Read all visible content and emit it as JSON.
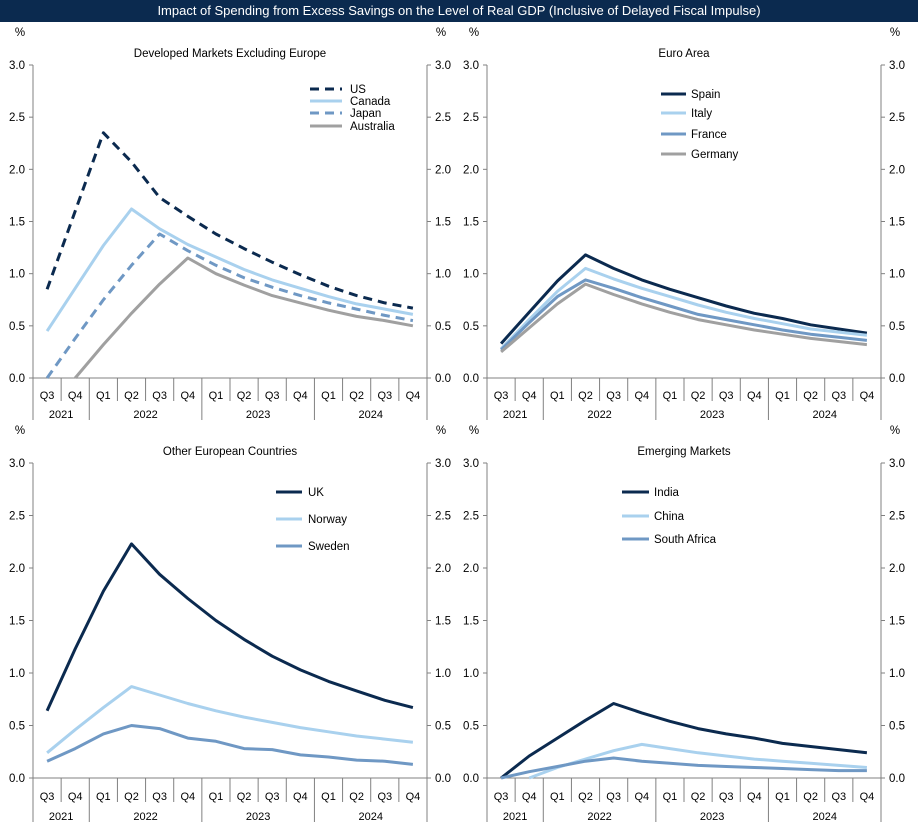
{
  "title": "Impact of Spending from Excess Savings on the Level of Real GDP (Inclusive of Delayed Fiscal Impulse)",
  "colors": {
    "banner": "#0b2a4f",
    "dark_navy": "#0b2a4f",
    "light_blue": "#a9d1ee",
    "mid_blue": "#6f98c4",
    "gray": "#a0a0a0",
    "axis": "#808080"
  },
  "shared_x": {
    "quarters": [
      "Q3",
      "Q4",
      "Q1",
      "Q2",
      "Q3",
      "Q4",
      "Q1",
      "Q2",
      "Q3",
      "Q4",
      "Q1",
      "Q2",
      "Q3",
      "Q4"
    ],
    "years": [
      {
        "label": "2021",
        "start": 0,
        "end": 1
      },
      {
        "label": "2022",
        "start": 2,
        "end": 5
      },
      {
        "label": "2023",
        "start": 6,
        "end": 9
      },
      {
        "label": "2024",
        "start": 10,
        "end": 13
      }
    ]
  },
  "chart_data": [
    {
      "type": "line",
      "title": "Developed Markets Excluding Europe",
      "ylabel_left": "%",
      "ylabel_right": "%",
      "ylim": [
        0,
        3
      ],
      "yticks": [
        "0.0",
        "0.5",
        "1.0",
        "1.5",
        "2.0",
        "2.5",
        "3.0"
      ],
      "series": [
        {
          "name": "US",
          "color_key": "dark_navy",
          "dash": true,
          "values": [
            0.85,
            1.6,
            2.35,
            2.07,
            1.73,
            1.55,
            1.38,
            1.24,
            1.11,
            0.99,
            0.88,
            0.79,
            0.72,
            0.67
          ]
        },
        {
          "name": "Canada",
          "color_key": "light_blue",
          "dash": false,
          "values": [
            0.45,
            0.86,
            1.27,
            1.62,
            1.43,
            1.28,
            1.16,
            1.04,
            0.94,
            0.86,
            0.78,
            0.71,
            0.66,
            0.61
          ]
        },
        {
          "name": "Japan",
          "color_key": "mid_blue",
          "dash": true,
          "values": [
            0.0,
            0.38,
            0.75,
            1.08,
            1.38,
            1.22,
            1.08,
            0.96,
            0.87,
            0.79,
            0.72,
            0.66,
            0.6,
            0.55
          ]
        },
        {
          "name": "Australia",
          "color_key": "gray",
          "dash": false,
          "values": [
            null,
            0.0,
            0.32,
            0.62,
            0.9,
            1.15,
            1.0,
            0.89,
            0.79,
            0.72,
            0.65,
            0.59,
            0.55,
            0.5
          ]
        }
      ],
      "legend": [
        "US",
        "Canada",
        "Japan",
        "Australia"
      ]
    },
    {
      "type": "line",
      "title": "Euro Area",
      "ylabel_left": "%",
      "ylabel_right": "%",
      "ylim": [
        0,
        3
      ],
      "yticks": [
        "0.0",
        "0.5",
        "1.0",
        "1.5",
        "2.0",
        "2.5",
        "3.0"
      ],
      "series": [
        {
          "name": "Spain",
          "color_key": "dark_navy",
          "dash": false,
          "values": [
            0.33,
            0.63,
            0.93,
            1.18,
            1.05,
            0.94,
            0.85,
            0.77,
            0.69,
            0.62,
            0.57,
            0.51,
            0.47,
            0.43
          ]
        },
        {
          "name": "Italy",
          "color_key": "light_blue",
          "dash": false,
          "values": [
            0.28,
            0.56,
            0.83,
            1.05,
            0.95,
            0.86,
            0.78,
            0.7,
            0.63,
            0.57,
            0.52,
            0.47,
            0.44,
            0.41
          ]
        },
        {
          "name": "France",
          "color_key": "mid_blue",
          "dash": false,
          "values": [
            0.27,
            0.53,
            0.78,
            0.94,
            0.86,
            0.77,
            0.69,
            0.61,
            0.56,
            0.51,
            0.46,
            0.42,
            0.39,
            0.36
          ]
        },
        {
          "name": "Germany",
          "color_key": "gray",
          "dash": false,
          "values": [
            0.25,
            0.48,
            0.71,
            0.9,
            0.8,
            0.71,
            0.63,
            0.56,
            0.51,
            0.46,
            0.42,
            0.38,
            0.35,
            0.32
          ]
        }
      ],
      "legend": [
        "Spain",
        "Italy",
        "France",
        "Germany"
      ]
    },
    {
      "type": "line",
      "title": "Other European Countries",
      "ylabel_left": "%",
      "ylabel_right": "%",
      "ylim": [
        0,
        3
      ],
      "yticks": [
        "0.0",
        "0.5",
        "1.0",
        "1.5",
        "2.0",
        "2.5",
        "3.0"
      ],
      "series": [
        {
          "name": "UK",
          "color_key": "dark_navy",
          "dash": false,
          "values": [
            0.64,
            1.23,
            1.78,
            2.23,
            1.94,
            1.71,
            1.5,
            1.32,
            1.16,
            1.03,
            0.92,
            0.83,
            0.74,
            0.67
          ]
        },
        {
          "name": "Norway",
          "color_key": "light_blue",
          "dash": false,
          "values": [
            0.24,
            0.46,
            0.67,
            0.87,
            0.79,
            0.71,
            0.64,
            0.58,
            0.53,
            0.48,
            0.44,
            0.4,
            0.37,
            0.34
          ]
        },
        {
          "name": "Sweden",
          "color_key": "mid_blue",
          "dash": false,
          "values": [
            0.16,
            0.28,
            0.42,
            0.5,
            0.47,
            0.38,
            0.35,
            0.28,
            0.27,
            0.22,
            0.2,
            0.17,
            0.16,
            0.13
          ]
        }
      ],
      "legend": [
        "UK",
        "Norway",
        "Sweden"
      ]
    },
    {
      "type": "line",
      "title": "Emerging Markets",
      "ylabel_left": "%",
      "ylabel_right": "%",
      "ylim": [
        0,
        3
      ],
      "yticks": [
        "0.0",
        "0.5",
        "1.0",
        "1.5",
        "2.0",
        "2.5",
        "3.0"
      ],
      "series": [
        {
          "name": "India",
          "color_key": "dark_navy",
          "dash": false,
          "values": [
            0.0,
            0.21,
            0.38,
            0.55,
            0.71,
            0.62,
            0.54,
            0.47,
            0.42,
            0.38,
            0.33,
            0.3,
            0.27,
            0.24
          ]
        },
        {
          "name": "China",
          "color_key": "light_blue",
          "dash": false,
          "values": [
            null,
            0.0,
            0.1,
            0.18,
            0.26,
            0.32,
            0.28,
            0.24,
            0.21,
            0.18,
            0.16,
            0.14,
            0.12,
            0.1
          ]
        },
        {
          "name": "South Africa",
          "color_key": "mid_blue",
          "dash": false,
          "values": [
            0.0,
            0.06,
            0.11,
            0.16,
            0.19,
            0.16,
            0.14,
            0.12,
            0.11,
            0.1,
            0.09,
            0.08,
            0.07,
            0.07
          ]
        }
      ],
      "legend": [
        "India",
        "China",
        "South Africa"
      ]
    }
  ]
}
